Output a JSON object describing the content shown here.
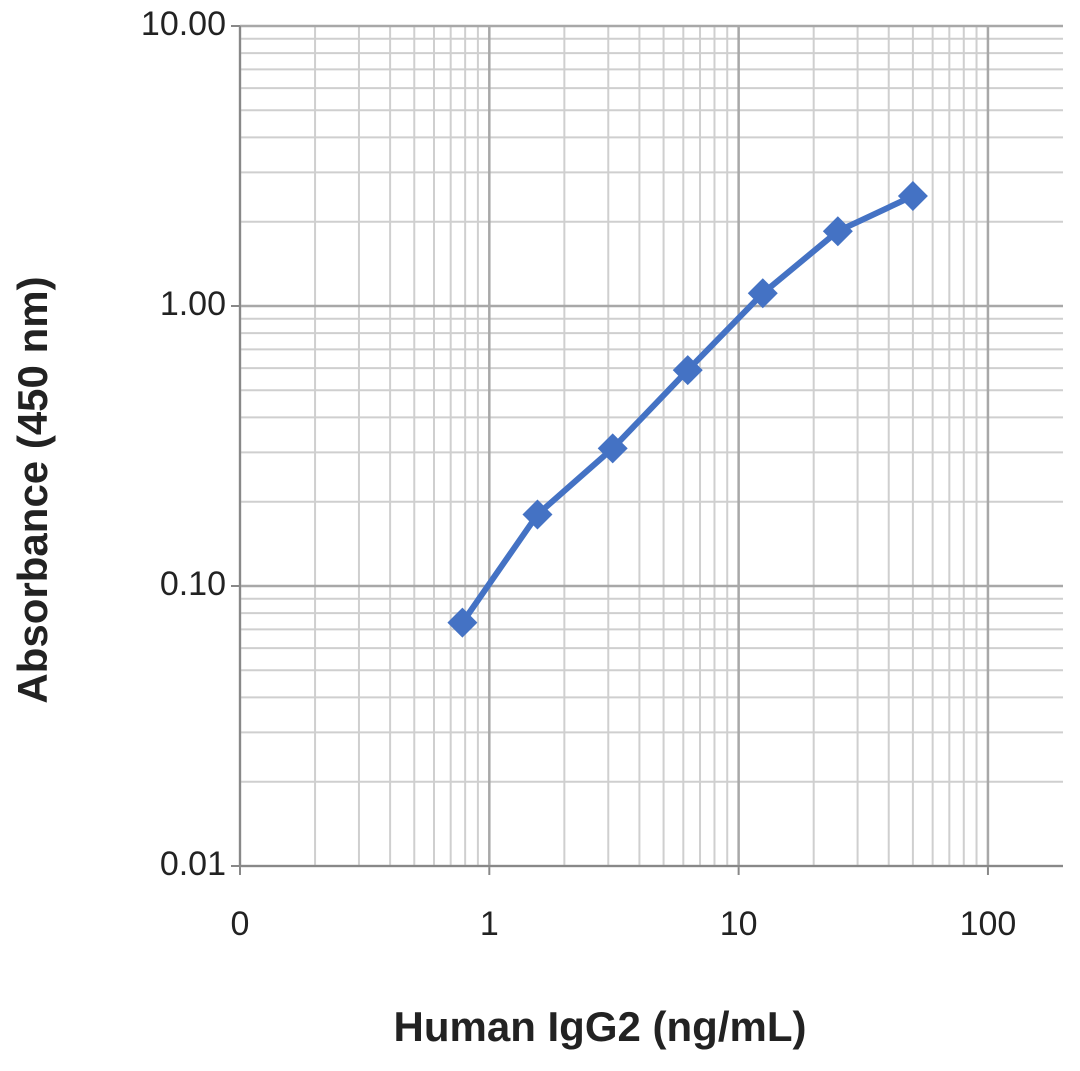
{
  "chart_data": {
    "type": "line",
    "x_label": "Human IgG2 (ng/mL)",
    "y_label": "Absorbance  (450 nm)",
    "x": [
      0.78,
      1.56,
      3.125,
      6.25,
      12.5,
      25,
      50
    ],
    "series": [
      {
        "name": "Human IgG2",
        "color": "#4472c4",
        "values": [
          0.074,
          0.18,
          0.31,
          0.59,
          1.11,
          1.85,
          2.47
        ]
      }
    ],
    "xlim": [
      0.1,
      200
    ],
    "ylim": [
      0.01,
      10
    ],
    "xticks": [
      {
        "value": 0.1,
        "label": "0"
      },
      1,
      10,
      100
    ],
    "yticks": [
      {
        "value": 0.01,
        "label": "0.01"
      },
      {
        "value": 0.1,
        "label": "0.10"
      },
      {
        "value": 1,
        "label": "1.00"
      },
      {
        "value": 10,
        "label": "10.00"
      }
    ],
    "xscale": "log",
    "yscale": "log",
    "grid": true,
    "minor_grid": true,
    "legend": false
  }
}
